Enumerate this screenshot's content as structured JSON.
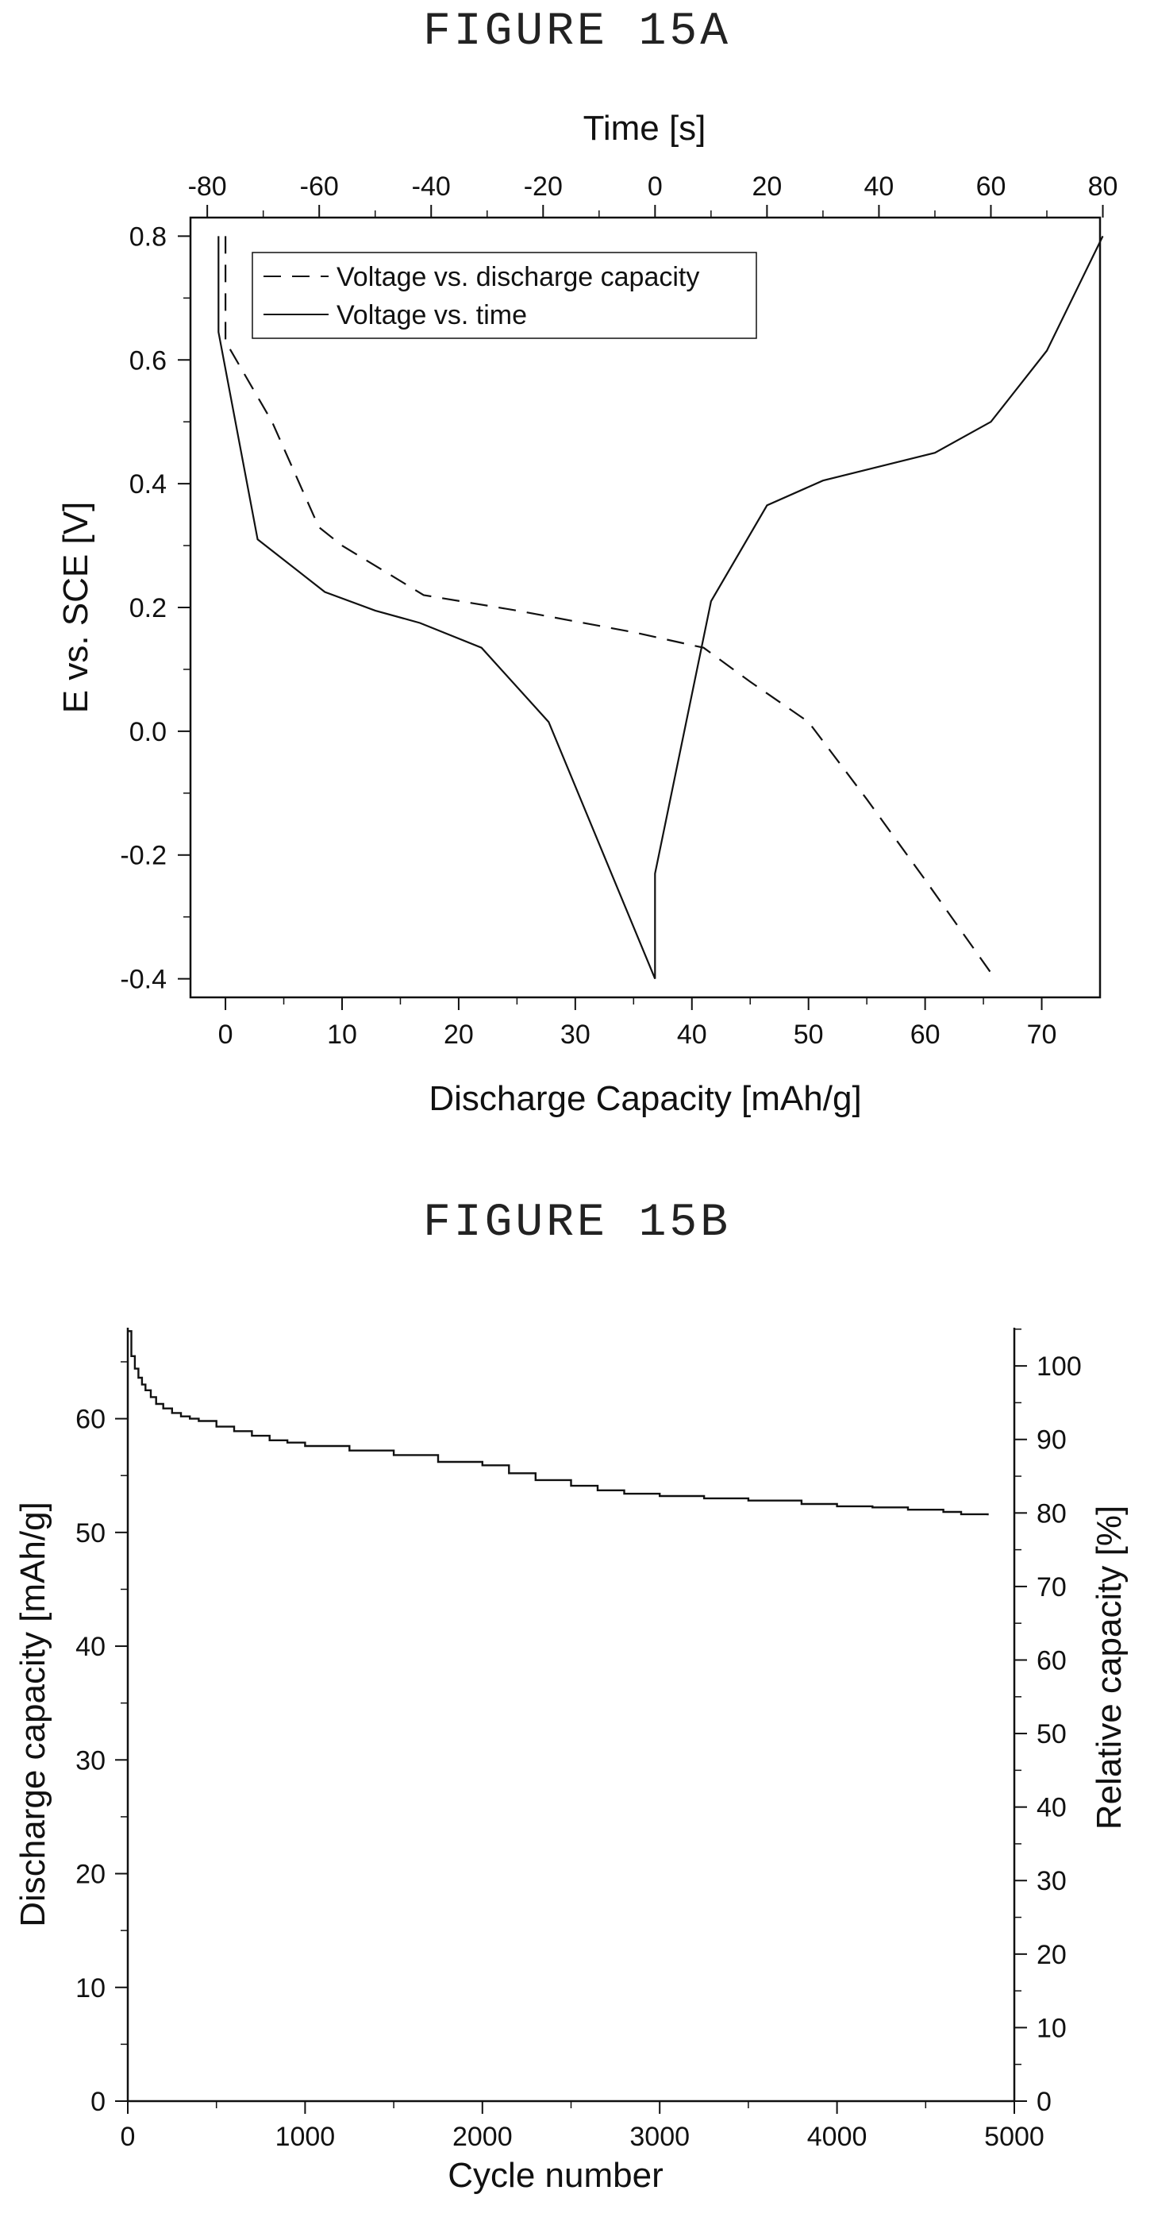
{
  "figures": {
    "a_title": "FIGURE 15A",
    "b_title": "FIGURE 15B"
  },
  "chart_data": [
    {
      "type": "line",
      "xlabel": "Discharge Capacity [mAh/g]",
      "ylabel": "E vs. SCE [V]",
      "x2label": "Time [s]",
      "xlim": [
        -3,
        75
      ],
      "ylim": [
        -0.43,
        0.83
      ],
      "x2lim": [
        -83,
        79.5
      ],
      "xticks": [
        0,
        10,
        20,
        30,
        40,
        50,
        60,
        70
      ],
      "yticks": [
        -0.4,
        -0.2,
        0.0,
        0.2,
        0.4,
        0.6,
        0.8
      ],
      "ytick_labels": [
        "-0.4",
        "-0.2",
        "0.0",
        "0.2",
        "0.4",
        "0.6",
        "0.8"
      ],
      "x2ticks": [
        -80,
        -60,
        -40,
        -20,
        0,
        20,
        40,
        60,
        80
      ],
      "legend_position": "top-left",
      "series": [
        {
          "name": "Voltage vs. discharge capacity",
          "axis": "bottom",
          "style": "dashed",
          "x": [
            0.0,
            0.0,
            0.0,
            4.0,
            8.0,
            10.0,
            17.0,
            25.0,
            35.0,
            41.0,
            45.0,
            50.0,
            55.0,
            60.0,
            66.0
          ],
          "y": [
            0.8,
            0.65,
            0.63,
            0.5,
            0.33,
            0.3,
            0.22,
            0.195,
            0.16,
            0.135,
            0.08,
            0.015,
            -0.11,
            -0.24,
            -0.4
          ]
        },
        {
          "name": "Voltage vs. time",
          "axis": "top",
          "style": "solid",
          "x": [
            -78.0,
            -78.0,
            -71.0,
            -59.0,
            -50.0,
            -42.0,
            -31.0,
            -19.0,
            0.0,
            0.0,
            10.0,
            20.0,
            30.0,
            50.0,
            60.0,
            70.0,
            80.0
          ],
          "y": [
            0.8,
            0.645,
            0.31,
            0.225,
            0.195,
            0.175,
            0.135,
            0.015,
            -0.4,
            -0.23,
            0.21,
            0.365,
            0.405,
            0.45,
            0.5,
            0.615,
            0.8
          ]
        }
      ]
    },
    {
      "type": "line",
      "xlabel": "Cycle number",
      "ylabel": "Discharge capacity [mAh/g]",
      "y2label": "Relative capacity [%]",
      "xlim": [
        0,
        5000
      ],
      "ylim": [
        0,
        68
      ],
      "y2lim": [
        0,
        105.2
      ],
      "xticks": [
        0,
        1000,
        2000,
        3000,
        4000,
        5000
      ],
      "yticks": [
        0,
        10,
        20,
        30,
        40,
        50,
        60
      ],
      "y2ticks": [
        0,
        10,
        20,
        30,
        40,
        50,
        60,
        70,
        80,
        90,
        100
      ],
      "series": [
        {
          "style": "solid-stepped",
          "x": [
            0,
            20,
            40,
            60,
            80,
            100,
            130,
            160,
            200,
            250,
            300,
            350,
            400,
            500,
            600,
            700,
            800,
            900,
            1000,
            1250,
            1500,
            1750,
            2000,
            2150,
            2300,
            2500,
            2650,
            2800,
            3000,
            3250,
            3500,
            3800,
            4000,
            4200,
            4400,
            4600,
            4700,
            4850
          ],
          "y": [
            67.7,
            65.5,
            64.4,
            63.6,
            63.0,
            62.5,
            61.9,
            61.3,
            60.9,
            60.5,
            60.2,
            60.0,
            59.8,
            59.3,
            58.9,
            58.5,
            58.1,
            57.9,
            57.6,
            57.2,
            56.8,
            56.2,
            55.9,
            55.2,
            54.6,
            54.1,
            53.7,
            53.4,
            53.2,
            53.0,
            52.8,
            52.5,
            52.3,
            52.2,
            52.0,
            51.8,
            51.6,
            51.5
          ]
        }
      ]
    }
  ]
}
